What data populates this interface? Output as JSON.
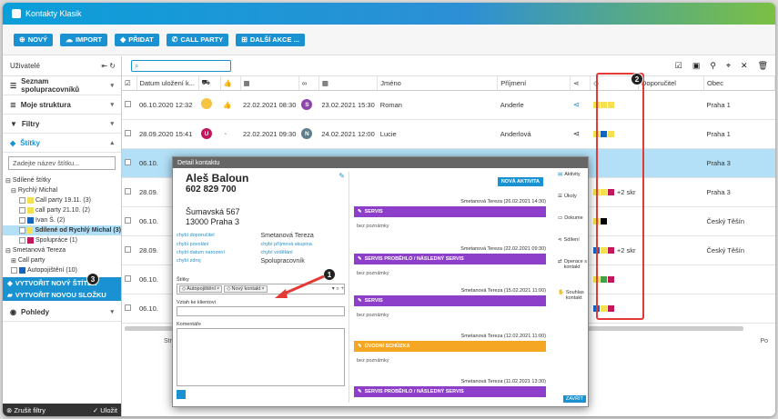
{
  "app": {
    "title": "Kontakty Klasik"
  },
  "toolbar": {
    "buttons": [
      {
        "label": "NOVÝ",
        "icon": "plus-icon"
      },
      {
        "label": "IMPORT",
        "icon": "cloud-icon"
      },
      {
        "label": "PŘIDAT",
        "icon": "tag-icon"
      },
      {
        "label": "CALL PARTY",
        "icon": "phone-icon"
      },
      {
        "label": "DALŠÍ AKCE ...",
        "icon": "plus-square-icon"
      }
    ]
  },
  "sidebar": {
    "header": "Uživatelé",
    "sections": [
      "Seznam spolupracovníků",
      "Moje struktura",
      "Filtry",
      "Štítky"
    ],
    "tag_search_placeholder": "Zadejte název štítku...",
    "tree": [
      {
        "label": "Sdílené štítky",
        "level": 0,
        "type": "folder"
      },
      {
        "label": "Rychlý Michal",
        "level": 1,
        "type": "folder"
      },
      {
        "label": "Call party 19.11. (3)",
        "level": 2,
        "color": "#f5e050"
      },
      {
        "label": "call party 21.10. (2)",
        "level": 2,
        "color": "#f5e050"
      },
      {
        "label": "Ivan Š. (2)",
        "level": 2,
        "color": "#1565c0"
      },
      {
        "label": "Sdílené od Rychlý Michal (3)",
        "level": 2,
        "color": "#f5e050",
        "selected": true
      },
      {
        "label": "Spolupráce (1)",
        "level": 2,
        "color": "#c2185b"
      },
      {
        "label": "Smetanová Tereza",
        "level": 0,
        "type": "folder"
      },
      {
        "label": "Call party",
        "level": 1,
        "type": "folder"
      },
      {
        "label": "Autopojištění (10)",
        "level": 1,
        "color": "#1565c0"
      }
    ],
    "create_tag": "VYTVOŘIT NOVÝ ŠTÍTEK",
    "create_folder": "VYTVOŘIT NOVOU SLOŽKU",
    "views": "Pohledy",
    "clear_filters": "Zrušit filtry",
    "save": "Uložit"
  },
  "grid": {
    "headers": [
      "Datum uložení k...",
      "",
      "",
      "",
      "",
      "",
      "Jméno",
      "Příjmení",
      "",
      "",
      "Doporučitel",
      "Obec"
    ],
    "rows": [
      {
        "date": "06.10.2020 12:32",
        "av1": "",
        "av1c": "#f6c342",
        "d2": "22.02.2021 08:30",
        "av2": "S",
        "av2c": "#8e44ad",
        "d3": "23.02.2021 15:30",
        "jmeno": "Roman",
        "prijmeni": "Anderle",
        "share": true,
        "tags": [
          "#f5e050",
          "#f5e050",
          "#f5e050"
        ],
        "extra": "",
        "obec": "Praha 1"
      },
      {
        "date": "28.09.2020 15:41",
        "av1": "U",
        "av1c": "#c2185b",
        "d2": "22.02.2021 09:30",
        "av2": "N",
        "av2c": "#607d8b",
        "d3": "24.02.2021 12:00",
        "jmeno": "Lucie",
        "prijmeni": "Anderlová",
        "share": true,
        "tags": [
          "#f5e050",
          "#1565c0",
          "#f5e050"
        ],
        "extra": "",
        "obec": "Praha 1"
      },
      {
        "date": "06.10.",
        "selected": true,
        "tags": [],
        "extra": "",
        "obec": "Praha 3"
      },
      {
        "date": "28.09.",
        "tags": [
          "#f5e050",
          "#f5e050",
          "#c2185b"
        ],
        "extra": "+2 skr",
        "obec": "Praha 3"
      },
      {
        "date": "06.10.",
        "tags": [
          "#f5e050",
          "#000000"
        ],
        "extra": "",
        "obec": "Český Těšín"
      },
      {
        "date": "28.09.",
        "tags": [
          "#1565c0",
          "#f5e050",
          "#c2185b"
        ],
        "extra": "+2 skr",
        "obec": "Český Těšín"
      },
      {
        "date": "06.10.",
        "tags": [
          "#f5e050",
          "#43a047",
          "#c2185b"
        ],
        "extra": "",
        "obec": ""
      },
      {
        "date": "06.10.",
        "tags": [
          "#1565c0",
          "#f5e050",
          "#c2185b"
        ],
        "extra": "",
        "obec": ""
      }
    ],
    "footer_left": "Str",
    "footer_right": "Po"
  },
  "modal": {
    "title": "Detail kontaktu",
    "name": "Aleš Baloun",
    "phone": "602 829 700",
    "street": "Šumavská 567",
    "city": "13000 Praha 3",
    "links_left": [
      "chybí doporučitel",
      "chybí povolání",
      "chybí datum narození",
      "chybí zdroj"
    ],
    "links_right": [
      "Smetanová Tereza",
      "chybí příjmová skupina",
      "chybí vzdělání",
      "Spolupracovník"
    ],
    "tags_label": "Štítky",
    "chips": [
      "Autopojištění",
      "Nový kontakt"
    ],
    "relation_label": "Vztah ke klientovi",
    "comments_label": "Komentáře",
    "new_activity": "NOVÁ AKTIVITA",
    "entries": [
      {
        "who": "Smetanová Tereza (26.02.2021 14:30)",
        "title": "SERVIS",
        "color": "#8e3fc9",
        "note": "bez poznámky"
      },
      {
        "who": "Smetanová Tereza (22.02.2021 09:30)",
        "title": "SERVIS PROBĚHLO / NÁSLEDNÝ SERVIS",
        "color": "#8e3fc9",
        "note": "bez poznámky"
      },
      {
        "who": "Smetanová Tereza (15.02.2021 11:00)",
        "title": "SERVIS",
        "color": "#8e3fc9",
        "note": "bez poznámky"
      },
      {
        "who": "Smetanová Tereza (12.02.2021 11:00)",
        "title": "ÚVODNÍ SCHŮZKA",
        "color": "#f5a623",
        "note": "bez poznámky"
      },
      {
        "who": "Smetanová Tereza (11.02.2021 13:30)",
        "title": "SERVIS PROBĚHLO / NÁSLEDNÝ SERVIS",
        "color": "#8e3fc9",
        "note": ""
      }
    ],
    "side_menu": [
      "Aktivity",
      "Úkoly",
      "Dokume",
      "Sdílení",
      "Operace s kontakt",
      "Souhlas kontakt"
    ],
    "bottom_btn": "ZAVŘÍT"
  },
  "annotations": [
    "1",
    "2",
    "3"
  ]
}
